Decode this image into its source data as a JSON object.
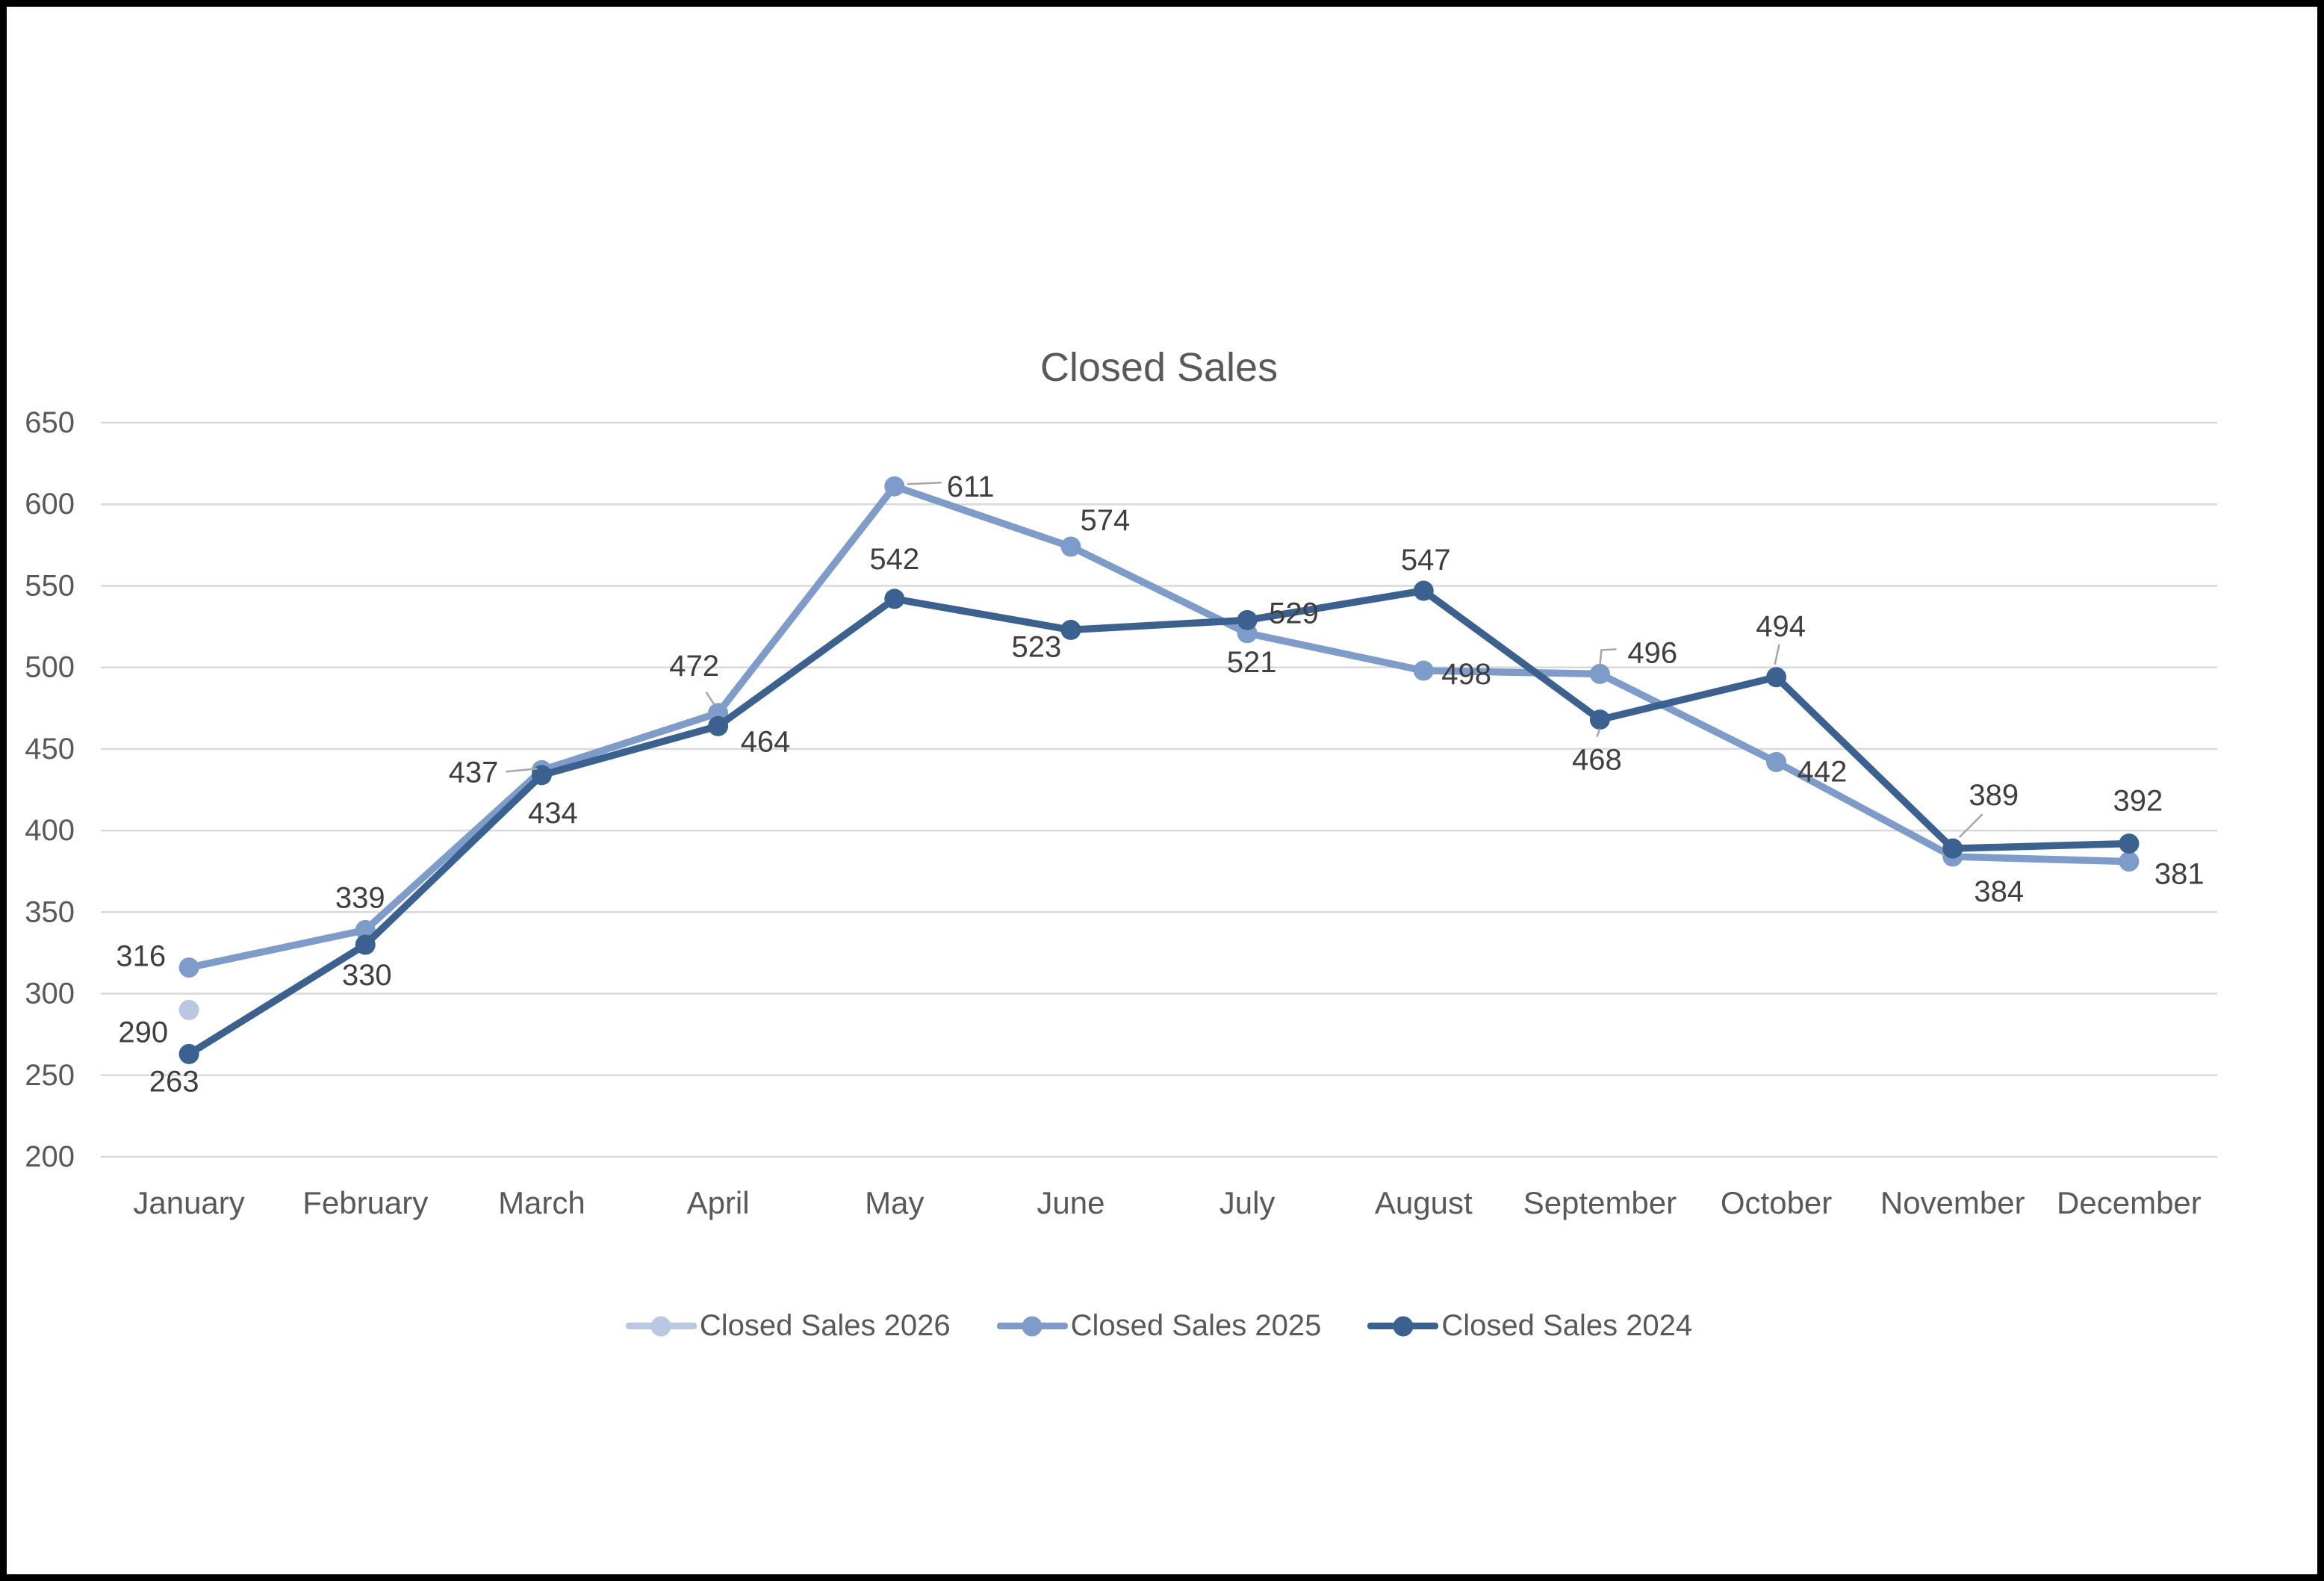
{
  "window": {
    "background": "#ffffff",
    "border_color": "#000000"
  },
  "chart_data": {
    "type": "line",
    "title": "Closed Sales",
    "categories": [
      "January",
      "February",
      "March",
      "April",
      "May",
      "June",
      "July",
      "August",
      "September",
      "October",
      "November",
      "December"
    ],
    "series": [
      {
        "name": "Closed Sales 2026",
        "color": "#b9c7e3",
        "values": [
          290,
          null,
          null,
          null,
          null,
          null,
          null,
          null,
          null,
          null,
          null,
          null
        ]
      },
      {
        "name": "Closed Sales 2025",
        "color": "#7e9cc9",
        "values": [
          316,
          339,
          437,
          472,
          611,
          574,
          521,
          498,
          496,
          442,
          384,
          381
        ]
      },
      {
        "name": "Closed Sales 2024",
        "color": "#3a618f",
        "values": [
          263,
          330,
          434,
          464,
          542,
          523,
          529,
          547,
          468,
          494,
          389,
          392
        ]
      }
    ],
    "ylim": [
      200,
      650
    ],
    "y_tick_step": 50,
    "y_ticks": [
      200,
      250,
      300,
      350,
      400,
      450,
      500,
      550,
      600,
      650
    ],
    "grid": true,
    "data_labels": true,
    "legend_position": "bottom",
    "axis_text_color": "#595959",
    "data_label_color": "#3f3f3f",
    "gridline_color": "#d9d9d9",
    "leader_line_color": "#a6a6a6"
  }
}
